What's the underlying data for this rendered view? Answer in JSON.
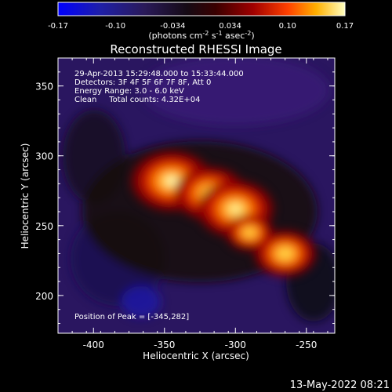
{
  "chart_data": {
    "type": "heatmap",
    "title": "Reconstructed RHESSI Image",
    "colorbar": {
      "ticks": [
        "-0.17",
        "-0.10",
        "-0.034",
        "0.034",
        "0.10",
        "0.17"
      ],
      "units_main": "(photons cm",
      "units_exp1": "-2",
      "units_mid": " s",
      "units_exp2": "-1",
      "units_end": " asec",
      "units_exp3": "-2",
      "units_close": ")",
      "range": [
        -0.17,
        0.17
      ]
    },
    "xlabel": "Heliocentric X (arcsec)",
    "ylabel": "Heliocentric Y (arcsec)",
    "xlim": [
      -425,
      -230
    ],
    "ylim": [
      173,
      370
    ],
    "xticks": [
      "-400",
      "-350",
      "-300",
      "-250"
    ],
    "xtick_values": [
      -400,
      -350,
      -300,
      -250
    ],
    "yticks": [
      "200",
      "250",
      "300",
      "350"
    ],
    "ytick_values": [
      200,
      250,
      300,
      350
    ],
    "annotations": {
      "time_range": "29-Apr-2013 15:29:48.000 to 15:33:44.000",
      "detectors": "Detectors: 3F 4F 5F 6F 7F 8F, Att 0",
      "energy": "Energy Range: 3.0 - 6.0 keV",
      "clean": "Clean     Total counts: 4.32E+04",
      "peak": "Position of Peak = [-345,282]"
    },
    "sources": [
      {
        "x": -345,
        "y": 282,
        "intensity": 0.17
      },
      {
        "x": -318,
        "y": 273,
        "intensity": 0.15
      },
      {
        "x": -300,
        "y": 262,
        "intensity": 0.16
      },
      {
        "x": -265,
        "y": 230,
        "intensity": 0.13
      },
      {
        "x": -290,
        "y": 245,
        "intensity": 0.1
      }
    ]
  },
  "footer": {
    "timestamp": "13-May-2022 08:21"
  }
}
